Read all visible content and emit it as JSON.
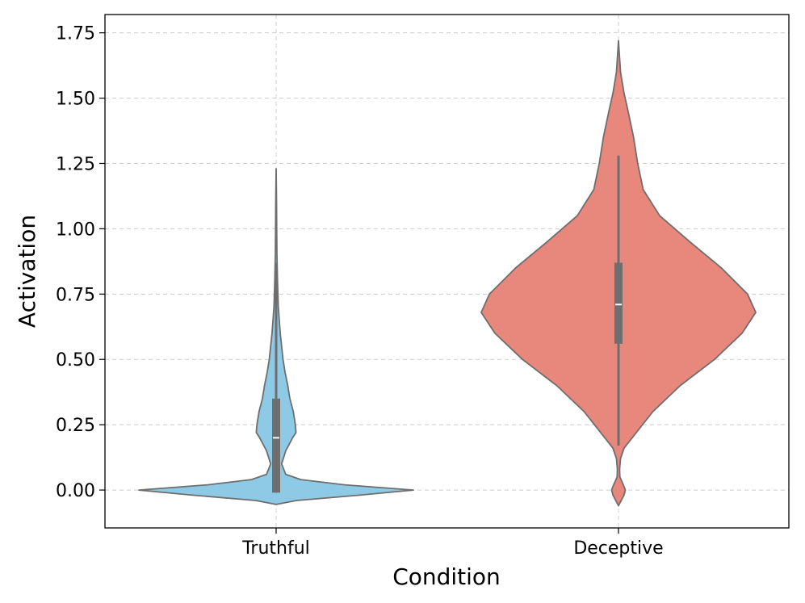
{
  "chart_data": {
    "type": "violin",
    "title": "",
    "xlabel": "Condition",
    "ylabel": "Activation",
    "categories": [
      "Truthful",
      "Deceptive"
    ],
    "ylim": [
      -0.145,
      1.82
    ],
    "yticks": [
      0.0,
      0.25,
      0.5,
      0.75,
      1.0,
      1.25,
      1.5,
      1.75
    ],
    "ytick_labels": [
      "0.00",
      "0.25",
      "0.50",
      "0.75",
      "1.00",
      "1.25",
      "1.50",
      "1.75"
    ],
    "grid": true,
    "grid_style": "dashed",
    "series": [
      {
        "category": "Truthful",
        "color": "#8ecae6",
        "median": 0.2,
        "q1": -0.01,
        "q3": 0.35,
        "whisker_low": -0.01,
        "whisker_high": 0.87,
        "extent": [
          -0.055,
          1.23
        ],
        "density_profile": [
          [
            -0.055,
            0.0
          ],
          [
            -0.04,
            0.15
          ],
          [
            -0.02,
            0.6
          ],
          [
            0.0,
            1.0
          ],
          [
            0.02,
            0.5
          ],
          [
            0.04,
            0.18
          ],
          [
            0.06,
            0.07
          ],
          [
            0.1,
            0.04
          ],
          [
            0.15,
            0.07
          ],
          [
            0.2,
            0.12
          ],
          [
            0.22,
            0.145
          ],
          [
            0.25,
            0.14
          ],
          [
            0.3,
            0.125
          ],
          [
            0.35,
            0.1
          ],
          [
            0.4,
            0.085
          ],
          [
            0.45,
            0.065
          ],
          [
            0.5,
            0.05
          ],
          [
            0.6,
            0.03
          ],
          [
            0.7,
            0.016
          ],
          [
            0.8,
            0.01
          ],
          [
            0.9,
            0.006
          ],
          [
            1.0,
            0.004
          ],
          [
            1.1,
            0.003
          ],
          [
            1.23,
            0.0
          ]
        ]
      },
      {
        "category": "Deceptive",
        "color": "#e8877c",
        "median": 0.71,
        "q1": 0.56,
        "q3": 0.87,
        "whisker_low": 0.17,
        "whisker_high": 1.28,
        "extent": [
          -0.06,
          1.72
        ],
        "density_profile": [
          [
            -0.06,
            0.0
          ],
          [
            -0.04,
            0.02
          ],
          [
            -0.02,
            0.04
          ],
          [
            0.0,
            0.05
          ],
          [
            0.02,
            0.035
          ],
          [
            0.05,
            0.01
          ],
          [
            0.08,
            0.008
          ],
          [
            0.12,
            0.015
          ],
          [
            0.16,
            0.04
          ],
          [
            0.2,
            0.1
          ],
          [
            0.3,
            0.25
          ],
          [
            0.4,
            0.45
          ],
          [
            0.5,
            0.7
          ],
          [
            0.6,
            0.9
          ],
          [
            0.68,
            1.0
          ],
          [
            0.75,
            0.94
          ],
          [
            0.85,
            0.75
          ],
          [
            0.95,
            0.52
          ],
          [
            1.05,
            0.3
          ],
          [
            1.15,
            0.18
          ],
          [
            1.25,
            0.14
          ],
          [
            1.35,
            0.11
          ],
          [
            1.45,
            0.07
          ],
          [
            1.52,
            0.04
          ],
          [
            1.6,
            0.015
          ],
          [
            1.72,
            0.0
          ]
        ]
      }
    ]
  }
}
